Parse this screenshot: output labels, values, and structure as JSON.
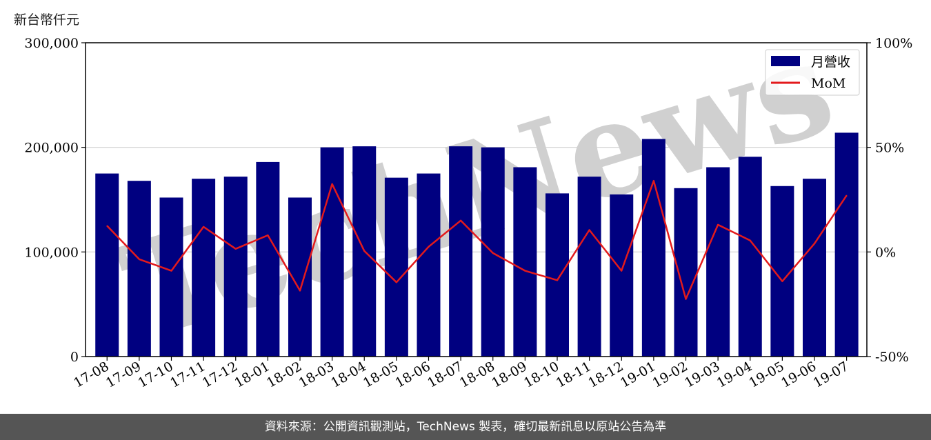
{
  "chart_data": {
    "type": "bar",
    "y_unit_label": "新台幣仟元",
    "categories": [
      "17-08",
      "17-09",
      "17-10",
      "17-11",
      "17-12",
      "18-01",
      "18-02",
      "18-03",
      "18-04",
      "18-05",
      "18-06",
      "18-07",
      "18-08",
      "18-09",
      "18-10",
      "18-11",
      "18-12",
      "19-01",
      "19-02",
      "19-03",
      "19-04",
      "19-05",
      "19-06",
      "19-07"
    ],
    "series": [
      {
        "name": "月營收",
        "type": "bar",
        "axis": "left",
        "color": "#000080",
        "values": [
          175000,
          168000,
          152000,
          170000,
          172000,
          186000,
          152000,
          200000,
          201000,
          171000,
          175000,
          201000,
          200000,
          181000,
          156000,
          172000,
          155000,
          208000,
          161000,
          181000,
          191000,
          163000,
          170000,
          214000
        ]
      },
      {
        "name": "MoM",
        "type": "line",
        "axis": "right",
        "color": "#e31a1c",
        "values": [
          12.5,
          -3.5,
          -9.0,
          12.0,
          1.5,
          8.0,
          -18.5,
          32.5,
          0.5,
          -14.5,
          2.5,
          15.0,
          -0.5,
          -9.0,
          -13.5,
          10.5,
          -9.0,
          34.0,
          -22.5,
          13.0,
          5.5,
          -14.0,
          4.0,
          27.0
        ]
      }
    ],
    "y_left": {
      "ticks": [
        "0",
        "100,000",
        "200,000",
        "300,000"
      ],
      "min": 0,
      "max": 300000
    },
    "y_right": {
      "ticks": [
        "-50%",
        "0%",
        "50%",
        "100%"
      ],
      "min": -50,
      "max": 100
    },
    "grid": "horizontal",
    "legend_position": "top-right"
  },
  "footer": {
    "text": "資料來源：公開資訊觀測站，TechNews 製表，確切最新訊息以原站公告為準"
  },
  "watermark": {
    "text": "TechNews"
  }
}
